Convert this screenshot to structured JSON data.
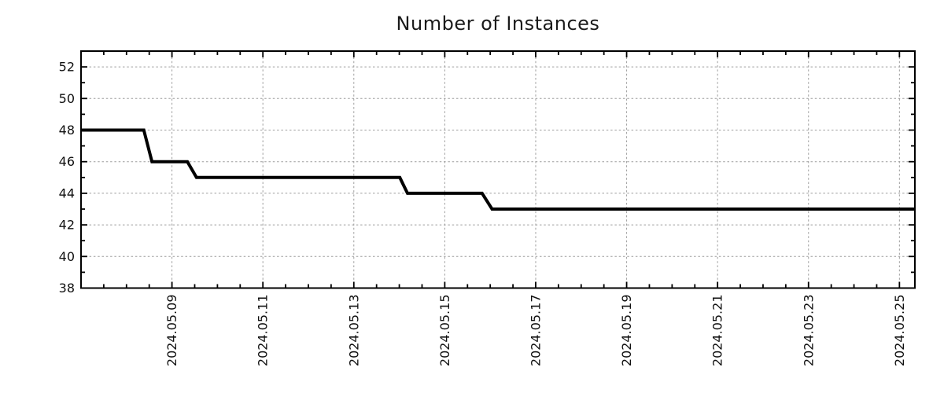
{
  "title": "Number of Instances",
  "chart": {
    "background_color": "#ffffff",
    "axis_color": "#000000",
    "grid_color": "#9e9e9e",
    "text_color": "#111111"
  },
  "chart_data": {
    "type": "line",
    "title": "Number of Instances",
    "xlabel": "",
    "ylabel": "",
    "grid": true,
    "legend": "none",
    "x_axis": {
      "epoch": "2024-05-07 00:00",
      "unit": "days_since_epoch",
      "range": [
        0,
        18.34
      ],
      "major_ticks": [
        2,
        4,
        6,
        8,
        10,
        12,
        14,
        16,
        18
      ],
      "major_tick_labels": [
        "2024.05.09",
        "2024.05.11",
        "2024.05.13",
        "2024.05.15",
        "2024.05.17",
        "2024.05.19",
        "2024.05.21",
        "2024.05.23",
        "2024.05.25"
      ],
      "minor_tick_step": 0.5,
      "label_rotation_deg": -90
    },
    "y_axis": {
      "range": [
        38,
        53
      ],
      "major_ticks": [
        38,
        40,
        42,
        44,
        46,
        48,
        50,
        52
      ],
      "major_tick_labels": [
        "38",
        "40",
        "42",
        "44",
        "46",
        "48",
        "50",
        "52"
      ],
      "minor_tick_step": 1
    },
    "series": [
      {
        "name": "instances",
        "color": "#000000",
        "line_width": 4,
        "points": [
          {
            "t": 0.0,
            "date": "2024-05-07 00:00",
            "value": 48
          },
          {
            "t": 1.38,
            "date": "2024-05-08 09:00",
            "value": 48
          },
          {
            "t": 1.56,
            "date": "2024-05-08 13:30",
            "value": 46
          },
          {
            "t": 2.34,
            "date": "2024-05-09 08:10",
            "value": 46
          },
          {
            "t": 2.54,
            "date": "2024-05-09 13:00",
            "value": 45
          },
          {
            "t": 7.01,
            "date": "2024-05-14 00:15",
            "value": 45
          },
          {
            "t": 7.18,
            "date": "2024-05-14 04:20",
            "value": 44
          },
          {
            "t": 8.82,
            "date": "2024-05-15 19:40",
            "value": 44
          },
          {
            "t": 9.04,
            "date": "2024-05-16 01:00",
            "value": 43
          },
          {
            "t": 18.34,
            "date": "2024-05-25 08:10",
            "value": 43
          }
        ]
      }
    ]
  }
}
